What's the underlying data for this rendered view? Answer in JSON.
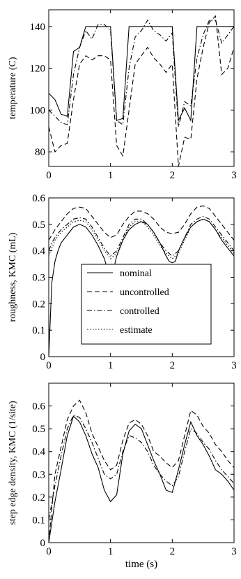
{
  "chart_data": [
    {
      "type": "line",
      "title": "",
      "xlabel": "",
      "ylabel": "temperature (C)",
      "xlim": [
        0,
        3
      ],
      "ylim": [
        73,
        148
      ],
      "xticks": [
        "0",
        "1",
        "2",
        "3"
      ],
      "yticks": [
        80,
        100,
        120,
        140
      ],
      "grid": false,
      "series": [
        {
          "name": "nominal",
          "x": [
            0,
            0.1,
            0.2,
            0.3,
            0.4,
            0.5,
            0.6,
            0.7,
            0.8,
            0.9,
            1.0,
            1.1,
            1.2,
            1.3,
            1.4,
            1.5,
            1.6,
            1.7,
            1.8,
            1.9,
            2.0,
            2.1,
            2.2,
            2.3,
            2.4,
            2.5,
            2.6,
            2.7,
            2.8,
            2.9,
            3.0
          ],
          "y": [
            108,
            105,
            98,
            97,
            128,
            130,
            140,
            140,
            140,
            140,
            140,
            95,
            96,
            140,
            140,
            140,
            140,
            140,
            140,
            140,
            140,
            95,
            101,
            95,
            140,
            140,
            140,
            140,
            140,
            140,
            140
          ]
        },
        {
          "name": "uncontrolled",
          "x": [
            0,
            0.1,
            0.2,
            0.3,
            0.4,
            0.5,
            0.6,
            0.7,
            0.8,
            0.9,
            1.0,
            1.1,
            1.2,
            1.3,
            1.4,
            1.5,
            1.6,
            1.7,
            1.8,
            1.9,
            2.0,
            2.1,
            2.2,
            2.3,
            2.4,
            2.5,
            2.6,
            2.7,
            2.8,
            2.9,
            3.0
          ],
          "y": [
            92,
            80,
            83,
            84,
            105,
            122,
            126,
            124,
            126,
            126,
            124,
            83,
            78,
            100,
            122,
            126,
            130,
            125,
            122,
            118,
            122,
            73,
            87,
            86,
            115,
            130,
            142,
            145,
            117,
            120,
            130
          ]
        },
        {
          "name": "controlled",
          "x": [
            0,
            0.1,
            0.2,
            0.3,
            0.4,
            0.5,
            0.6,
            0.7,
            0.8,
            0.9,
            1.0,
            1.1,
            1.2,
            1.3,
            1.4,
            1.5,
            1.6,
            1.7,
            1.8,
            1.9,
            2.0,
            2.1,
            2.2,
            2.3,
            2.4,
            2.5,
            2.6,
            2.7,
            2.8,
            2.9,
            3.0
          ],
          "y": [
            100,
            97,
            94,
            93,
            117,
            130,
            138,
            134,
            141,
            141,
            138,
            95,
            93,
            120,
            135,
            138,
            143,
            138,
            136,
            133,
            137,
            92,
            104,
            102,
            125,
            136,
            143,
            143,
            132,
            136,
            140
          ]
        }
      ]
    },
    {
      "type": "line",
      "title": "",
      "xlabel": "",
      "ylabel": "roughness, KMC (mL)",
      "xlim": [
        0,
        3
      ],
      "ylim": [
        0,
        0.6
      ],
      "xticks": [
        "0",
        "1",
        "2",
        "3"
      ],
      "yticks": [
        "0",
        "0.1",
        "0.2",
        "0.3",
        "0.4",
        "0.5",
        "0.6"
      ],
      "grid": false,
      "legend": {
        "placement": "center-bottom",
        "entries": [
          {
            "label": "nominal",
            "style": "solid"
          },
          {
            "label": "uncontrolled",
            "style": "dashed"
          },
          {
            "label": "controlled",
            "style": "dashdot"
          },
          {
            "label": "estimate",
            "style": "dotted"
          }
        ]
      },
      "series": [
        {
          "name": "nominal",
          "x": [
            0,
            0.05,
            0.1,
            0.15,
            0.2,
            0.3,
            0.4,
            0.5,
            0.6,
            0.7,
            0.8,
            0.9,
            0.95,
            1.0,
            1.05,
            1.1,
            1.2,
            1.3,
            1.4,
            1.5,
            1.6,
            1.7,
            1.8,
            1.9,
            1.95,
            2.0,
            2.05,
            2.1,
            2.2,
            2.3,
            2.4,
            2.5,
            2.6,
            2.7,
            2.8,
            2.9,
            3.0
          ],
          "y": [
            0,
            0.28,
            0.36,
            0.4,
            0.43,
            0.46,
            0.49,
            0.5,
            0.49,
            0.46,
            0.42,
            0.37,
            0.33,
            0.31,
            0.33,
            0.38,
            0.44,
            0.48,
            0.5,
            0.51,
            0.5,
            0.47,
            0.43,
            0.38,
            0.36,
            0.355,
            0.36,
            0.4,
            0.45,
            0.49,
            0.51,
            0.52,
            0.51,
            0.48,
            0.44,
            0.41,
            0.38
          ]
        },
        {
          "name": "uncontrolled",
          "x": [
            0,
            0.05,
            0.1,
            0.2,
            0.3,
            0.4,
            0.5,
            0.6,
            0.7,
            0.8,
            0.9,
            1.0,
            1.1,
            1.2,
            1.3,
            1.4,
            1.5,
            1.6,
            1.7,
            1.8,
            1.9,
            2.0,
            2.1,
            2.2,
            2.3,
            2.4,
            2.5,
            2.6,
            2.7,
            2.8,
            2.9,
            3.0
          ],
          "y": [
            0.44,
            0.46,
            0.48,
            0.51,
            0.54,
            0.56,
            0.565,
            0.56,
            0.53,
            0.5,
            0.47,
            0.45,
            0.46,
            0.5,
            0.53,
            0.55,
            0.55,
            0.54,
            0.52,
            0.49,
            0.47,
            0.465,
            0.47,
            0.5,
            0.54,
            0.565,
            0.57,
            0.56,
            0.53,
            0.5,
            0.47,
            0.44
          ]
        },
        {
          "name": "controlled",
          "x": [
            0,
            0.05,
            0.1,
            0.2,
            0.3,
            0.4,
            0.5,
            0.6,
            0.7,
            0.8,
            0.9,
            1.0,
            1.1,
            1.2,
            1.3,
            1.4,
            1.5,
            1.6,
            1.7,
            1.8,
            1.9,
            2.0,
            2.1,
            2.2,
            2.3,
            2.4,
            2.5,
            2.6,
            2.7,
            2.8,
            2.9,
            3.0
          ],
          "y": [
            0.4,
            0.43,
            0.45,
            0.48,
            0.5,
            0.52,
            0.525,
            0.52,
            0.49,
            0.45,
            0.41,
            0.38,
            0.4,
            0.45,
            0.5,
            0.52,
            0.52,
            0.5,
            0.47,
            0.43,
            0.4,
            0.38,
            0.4,
            0.45,
            0.5,
            0.52,
            0.53,
            0.52,
            0.49,
            0.46,
            0.43,
            0.4
          ]
        },
        {
          "name": "estimate",
          "x": [
            0,
            0.05,
            0.1,
            0.2,
            0.3,
            0.4,
            0.5,
            0.6,
            0.7,
            0.8,
            0.9,
            1.0,
            1.1,
            1.2,
            1.3,
            1.4,
            1.5,
            1.6,
            1.7,
            1.8,
            1.9,
            2.0,
            2.1,
            2.2,
            2.3,
            2.4,
            2.5,
            2.6,
            2.7,
            2.8,
            2.9,
            3.0
          ],
          "y": [
            0.38,
            0.41,
            0.44,
            0.47,
            0.49,
            0.51,
            0.515,
            0.51,
            0.48,
            0.44,
            0.4,
            0.37,
            0.39,
            0.44,
            0.49,
            0.51,
            0.51,
            0.49,
            0.46,
            0.42,
            0.39,
            0.37,
            0.39,
            0.44,
            0.49,
            0.51,
            0.52,
            0.51,
            0.48,
            0.45,
            0.42,
            0.39
          ]
        }
      ]
    },
    {
      "type": "line",
      "title": "",
      "xlabel": "time (s)",
      "ylabel": "step edge density, KMC (1/site)",
      "xlim": [
        0,
        3
      ],
      "ylim": [
        0,
        0.7
      ],
      "xticks": [
        "0",
        "1",
        "2",
        "3"
      ],
      "yticks": [
        "0",
        "0.1",
        "0.2",
        "0.3",
        "0.4",
        "0.5",
        "0.6"
      ],
      "grid": false,
      "series": [
        {
          "name": "nominal",
          "x": [
            0,
            0.1,
            0.2,
            0.3,
            0.4,
            0.5,
            0.6,
            0.7,
            0.8,
            0.9,
            1.0,
            1.1,
            1.2,
            1.3,
            1.4,
            1.5,
            1.6,
            1.7,
            1.8,
            1.9,
            2.0,
            2.1,
            2.2,
            2.3,
            2.4,
            2.5,
            2.6,
            2.7,
            2.8,
            2.9,
            3.0
          ],
          "y": [
            0,
            0.18,
            0.32,
            0.47,
            0.555,
            0.53,
            0.47,
            0.39,
            0.33,
            0.23,
            0.18,
            0.21,
            0.39,
            0.49,
            0.52,
            0.5,
            0.43,
            0.36,
            0.3,
            0.23,
            0.22,
            0.32,
            0.43,
            0.53,
            0.47,
            0.43,
            0.38,
            0.32,
            0.3,
            0.27,
            0.23
          ]
        },
        {
          "name": "uncontrolled",
          "x": [
            0,
            0.1,
            0.2,
            0.3,
            0.4,
            0.5,
            0.6,
            0.7,
            0.8,
            0.9,
            1.0,
            1.1,
            1.2,
            1.3,
            1.4,
            1.5,
            1.6,
            1.7,
            1.8,
            1.9,
            2.0,
            2.1,
            2.2,
            2.3,
            2.4,
            2.5,
            2.6,
            2.7,
            2.8,
            2.9,
            3.0
          ],
          "y": [
            0,
            0.3,
            0.42,
            0.54,
            0.6,
            0.625,
            0.57,
            0.48,
            0.42,
            0.36,
            0.32,
            0.34,
            0.45,
            0.525,
            0.54,
            0.52,
            0.47,
            0.4,
            0.38,
            0.35,
            0.33,
            0.36,
            0.47,
            0.58,
            0.56,
            0.51,
            0.48,
            0.43,
            0.4,
            0.36,
            0.33
          ]
        },
        {
          "name": "controlled",
          "x": [
            0,
            0.1,
            0.2,
            0.3,
            0.4,
            0.5,
            0.6,
            0.7,
            0.8,
            0.9,
            1.0,
            1.1,
            1.2,
            1.3,
            1.4,
            1.5,
            1.6,
            1.7,
            1.8,
            1.9,
            2.0,
            2.1,
            2.2,
            2.3,
            2.4,
            2.5,
            2.6,
            2.7,
            2.8,
            2.9,
            3.0
          ],
          "y": [
            0.1,
            0.25,
            0.38,
            0.5,
            0.56,
            0.55,
            0.5,
            0.44,
            0.37,
            0.3,
            0.28,
            0.3,
            0.4,
            0.47,
            0.46,
            0.44,
            0.4,
            0.34,
            0.3,
            0.27,
            0.25,
            0.29,
            0.4,
            0.5,
            0.48,
            0.44,
            0.41,
            0.36,
            0.32,
            0.29,
            0.26
          ]
        }
      ]
    }
  ]
}
